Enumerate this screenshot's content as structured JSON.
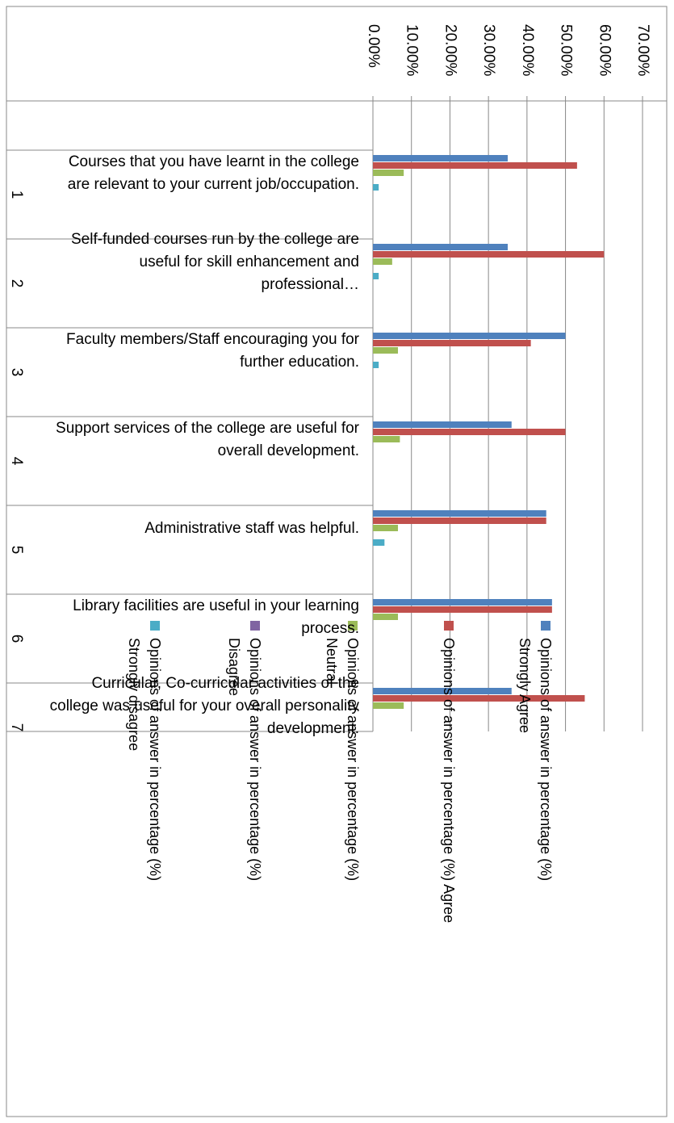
{
  "chart_data": {
    "type": "bar",
    "orientation": "horizontal",
    "categories": [
      "1",
      "2",
      "3",
      "4",
      "5",
      "6",
      "7"
    ],
    "descriptions": [
      "Courses that you have learnt in the college are relevant to your current job/occupation.",
      "Self-funded courses run by the college are useful for skill enhancement and professional…",
      "Faculty members/Staff encouraging you for further education.",
      "Support services of the college are useful for overall development.",
      "Administrative staff was helpful.",
      "Library facilities are useful in your learning process.",
      "Curricular, Co-curricular activities of the college was useful for your overall personality development."
    ],
    "series": [
      {
        "name": "Opinions of answer in percentage (%) Strongly Agree",
        "color": "#4f81bd",
        "values": [
          35,
          35,
          50,
          36,
          45,
          46.5,
          36
        ]
      },
      {
        "name": "Opinions of answer in percentage (%) Agree",
        "color": "#c0504d",
        "values": [
          53,
          60,
          41,
          50,
          45,
          46.5,
          55
        ]
      },
      {
        "name": "Opinions of answer in percentage (%) Neutral",
        "color": "#9bbb59",
        "values": [
          8,
          5,
          6.5,
          7,
          6.5,
          6.5,
          8
        ]
      },
      {
        "name": "Opinions of answer in percentage (%) Disagree",
        "color": "#8064a2",
        "values": [
          0,
          0,
          0,
          0,
          0,
          0,
          0
        ]
      },
      {
        "name": "Opinions of answer in percentage (%) Strongly disagree",
        "color": "#4bacc6",
        "values": [
          1.5,
          1.5,
          1.5,
          0,
          3,
          0,
          0
        ]
      }
    ],
    "xlim": [
      0,
      70
    ],
    "xticks": [
      {
        "value": 0,
        "label": "0.00%"
      },
      {
        "value": 10,
        "label": "10.00%"
      },
      {
        "value": 20,
        "label": "20.00%"
      },
      {
        "value": 30,
        "label": "30.00%"
      },
      {
        "value": 40,
        "label": "40.00%"
      },
      {
        "value": 50,
        "label": "50.00%"
      },
      {
        "value": 60,
        "label": "60.00%"
      },
      {
        "value": 70,
        "label": "70.00%"
      }
    ],
    "grid": true
  }
}
